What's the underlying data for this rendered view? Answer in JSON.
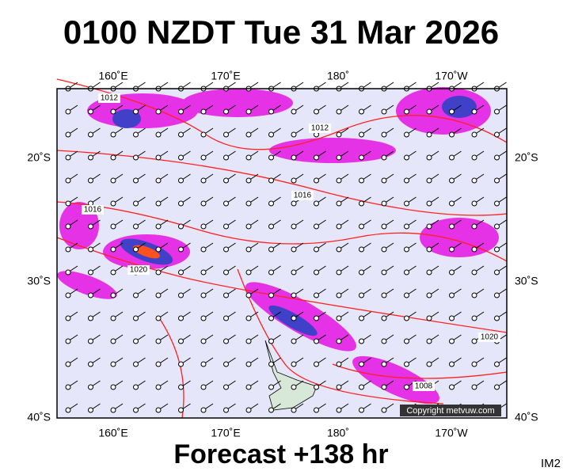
{
  "header": {
    "title": "0100 NZDT Tue 31 Mar 2026"
  },
  "map": {
    "lon_labels_top": [
      "160˚E",
      "170˚E",
      "180˚",
      "170˚W"
    ],
    "lon_labels_bottom": [
      "160˚E",
      "170˚E",
      "180˚",
      "170˚W"
    ],
    "lat_labels_left": [
      "20˚S",
      "30˚S",
      "40˚S"
    ],
    "lat_labels_right": [
      "20˚S",
      "30˚S",
      "40˚S"
    ],
    "isobar_labels": [
      "1012",
      "1012",
      "1016",
      "1016",
      "1020",
      "1020",
      "1008"
    ],
    "copyright": "Copyright metvuw.com"
  },
  "footer": {
    "forecast": "Forecast +138 hr",
    "image_id": "IM2"
  }
}
